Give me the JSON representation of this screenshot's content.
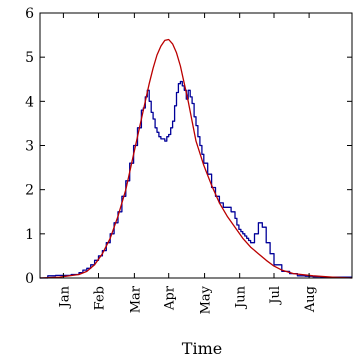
{
  "chart_data": {
    "type": "line",
    "title": "",
    "xlabel": "Time",
    "ylabel": "",
    "xlim": [
      0,
      8
    ],
    "ylim": [
      0,
      6
    ],
    "yticks": [
      0,
      1,
      2,
      3,
      4,
      5,
      6
    ],
    "categories": [
      "Jan",
      "Feb",
      "Mar",
      "Apr",
      "May",
      "Jun",
      "Jul",
      "Aug"
    ],
    "category_positions": [
      0.6,
      1.5,
      2.42,
      3.3,
      4.22,
      5.12,
      6.0,
      6.9
    ],
    "grid": false,
    "series": [
      {
        "style": "step",
        "color": "#000099",
        "x": [
          0.0,
          0.2,
          0.4,
          0.6,
          0.8,
          1.0,
          1.1,
          1.2,
          1.3,
          1.4,
          1.5,
          1.6,
          1.7,
          1.8,
          1.9,
          2.0,
          2.1,
          2.2,
          2.3,
          2.4,
          2.5,
          2.6,
          2.65,
          2.7,
          2.75,
          2.8,
          2.85,
          2.9,
          2.95,
          3.0,
          3.05,
          3.1,
          3.15,
          3.2,
          3.25,
          3.3,
          3.35,
          3.4,
          3.45,
          3.5,
          3.55,
          3.6,
          3.65,
          3.7,
          3.75,
          3.8,
          3.85,
          3.9,
          3.95,
          4.0,
          4.05,
          4.1,
          4.15,
          4.2,
          4.3,
          4.4,
          4.5,
          4.6,
          4.7,
          4.8,
          4.9,
          5.0,
          5.05,
          5.1,
          5.15,
          5.2,
          5.25,
          5.3,
          5.35,
          5.4,
          5.5,
          5.6,
          5.7,
          5.8,
          5.9,
          6.0,
          6.2,
          6.4,
          6.6,
          6.8,
          7.0,
          7.2,
          7.4,
          7.6,
          7.8,
          8.0
        ],
        "y": [
          0.0,
          0.05,
          0.06,
          0.06,
          0.08,
          0.12,
          0.18,
          0.22,
          0.3,
          0.4,
          0.5,
          0.62,
          0.8,
          1.0,
          1.25,
          1.5,
          1.85,
          2.2,
          2.6,
          3.0,
          3.4,
          3.8,
          3.85,
          4.1,
          4.25,
          4.0,
          3.75,
          3.6,
          3.4,
          3.3,
          3.2,
          3.15,
          3.15,
          3.1,
          3.2,
          3.25,
          3.4,
          3.55,
          3.9,
          4.2,
          4.4,
          4.45,
          4.35,
          4.25,
          4.05,
          4.25,
          4.1,
          3.95,
          3.65,
          3.45,
          3.2,
          3.0,
          2.8,
          2.6,
          2.35,
          2.05,
          1.85,
          1.7,
          1.6,
          1.6,
          1.5,
          1.35,
          1.2,
          1.1,
          1.05,
          1.0,
          0.95,
          0.9,
          0.85,
          0.8,
          1.0,
          1.25,
          1.15,
          0.8,
          0.55,
          0.3,
          0.15,
          0.1,
          0.05,
          0.04,
          0.03,
          0.02,
          0.02,
          0.02,
          0.02,
          0.02
        ]
      },
      {
        "style": "smooth",
        "color": "#bb0000",
        "x": [
          0.0,
          0.5,
          1.0,
          1.2,
          1.4,
          1.6,
          1.8,
          2.0,
          2.2,
          2.4,
          2.6,
          2.8,
          2.9,
          3.0,
          3.1,
          3.2,
          3.3,
          3.4,
          3.5,
          3.6,
          3.7,
          3.8,
          3.9,
          4.0,
          4.2,
          4.4,
          4.6,
          4.8,
          5.0,
          5.2,
          5.4,
          5.6,
          5.8,
          6.0,
          6.2,
          6.5,
          7.0,
          7.5,
          8.0
        ],
        "y": [
          0.0,
          0.02,
          0.08,
          0.15,
          0.3,
          0.55,
          0.9,
          1.4,
          2.0,
          2.8,
          3.6,
          4.4,
          4.75,
          5.05,
          5.25,
          5.38,
          5.4,
          5.3,
          5.1,
          4.8,
          4.4,
          4.0,
          3.55,
          3.1,
          2.55,
          2.1,
          1.7,
          1.4,
          1.15,
          0.9,
          0.7,
          0.55,
          0.4,
          0.27,
          0.18,
          0.1,
          0.05,
          0.02,
          0.0
        ]
      }
    ]
  }
}
